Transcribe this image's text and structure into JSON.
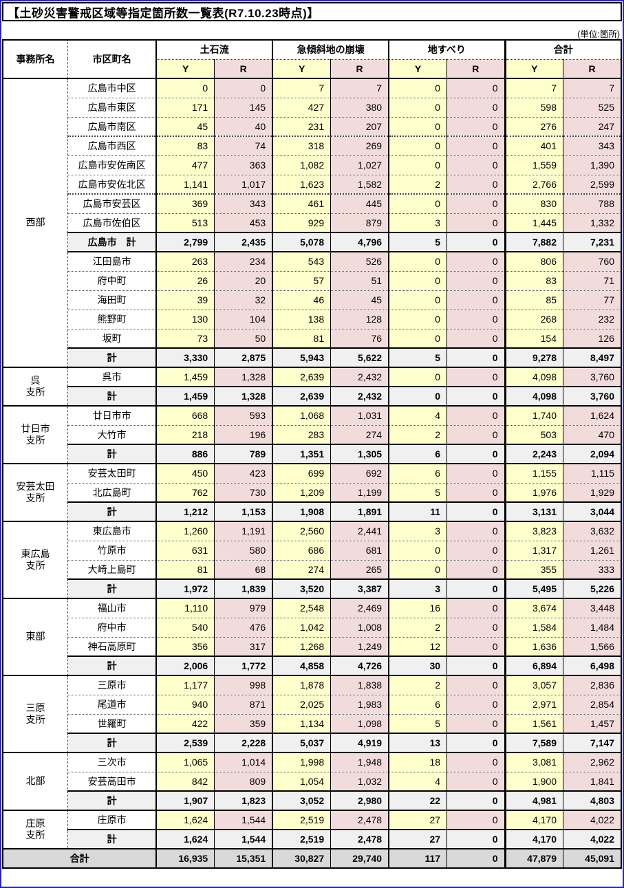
{
  "title": "【土砂災害警戒区域等指定箇所数一覧表(R7.10.23時点)】",
  "unit_note": "(単位:箇所)",
  "colors": {
    "y_bg": "#FFFFCC",
    "r_bg": "#F2DCDB",
    "subtotal_bg": "#F0F0F0",
    "grand_bg": "#D9D9D9",
    "frame_blue": "#2323CC"
  },
  "table": {
    "header": {
      "office": "事務所名",
      "city": "市区町名",
      "categories": [
        "土石流",
        "急傾斜地の崩壊",
        "地すべり",
        "合計"
      ],
      "y": "Y",
      "r": "R"
    },
    "groups": [
      {
        "office": "西部",
        "office_lines": [
          "西部"
        ],
        "rows": [
          {
            "kind": "muni",
            "name": "広島市中区",
            "values": [
              "0",
              "0",
              "7",
              "7",
              "0",
              "0",
              "7",
              "7"
            ]
          },
          {
            "kind": "muni",
            "name": "広島市東区",
            "values": [
              "171",
              "145",
              "427",
              "380",
              "0",
              "0",
              "598",
              "525"
            ]
          },
          {
            "kind": "muni",
            "name": "広島市南区",
            "values": [
              "45",
              "40",
              "231",
              "207",
              "0",
              "0",
              "276",
              "247"
            ]
          },
          {
            "kind": "muni",
            "sep": true,
            "name": "広島市西区",
            "values": [
              "83",
              "74",
              "318",
              "269",
              "0",
              "0",
              "401",
              "343"
            ]
          },
          {
            "kind": "muni",
            "name": "広島市安佐南区",
            "values": [
              "477",
              "363",
              "1,082",
              "1,027",
              "0",
              "0",
              "1,559",
              "1,390"
            ]
          },
          {
            "kind": "muni",
            "name": "広島市安佐北区",
            "values": [
              "1,141",
              "1,017",
              "1,623",
              "1,582",
              "2",
              "0",
              "2,766",
              "2,599"
            ]
          },
          {
            "kind": "muni",
            "sep": true,
            "name": "広島市安芸区",
            "values": [
              "369",
              "343",
              "461",
              "445",
              "0",
              "0",
              "830",
              "788"
            ]
          },
          {
            "kind": "muni",
            "name": "広島市佐伯区",
            "values": [
              "513",
              "453",
              "929",
              "879",
              "3",
              "0",
              "1,445",
              "1,332"
            ]
          },
          {
            "kind": "subtotal",
            "name": "広島市　計",
            "values": [
              "2,799",
              "2,435",
              "5,078",
              "4,796",
              "5",
              "0",
              "7,882",
              "7,231"
            ]
          },
          {
            "kind": "muni",
            "name": "江田島市",
            "values": [
              "263",
              "234",
              "543",
              "526",
              "0",
              "0",
              "806",
              "760"
            ]
          },
          {
            "kind": "muni",
            "name": "府中町",
            "values": [
              "26",
              "20",
              "57",
              "51",
              "0",
              "0",
              "83",
              "71"
            ]
          },
          {
            "kind": "muni",
            "name": "海田町",
            "values": [
              "39",
              "32",
              "46",
              "45",
              "0",
              "0",
              "85",
              "77"
            ]
          },
          {
            "kind": "muni",
            "name": "熊野町",
            "values": [
              "130",
              "104",
              "138",
              "128",
              "0",
              "0",
              "268",
              "232"
            ]
          },
          {
            "kind": "muni",
            "name": "坂町",
            "values": [
              "73",
              "50",
              "81",
              "76",
              "0",
              "0",
              "154",
              "126"
            ]
          },
          {
            "kind": "total",
            "name": "計",
            "values": [
              "3,330",
              "2,875",
              "5,943",
              "5,622",
              "5",
              "0",
              "9,278",
              "8,497"
            ]
          }
        ]
      },
      {
        "office": "呉支所",
        "office_lines": [
          "呉",
          "支所"
        ],
        "rows": [
          {
            "kind": "muni",
            "name": "呉市",
            "values": [
              "1,459",
              "1,328",
              "2,639",
              "2,432",
              "0",
              "0",
              "4,098",
              "3,760"
            ]
          },
          {
            "kind": "total",
            "name": "計",
            "values": [
              "1,459",
              "1,328",
              "2,639",
              "2,432",
              "0",
              "0",
              "4,098",
              "3,760"
            ]
          }
        ]
      },
      {
        "office": "廿日市支所",
        "office_lines": [
          "廿日市",
          "支所"
        ],
        "rows": [
          {
            "kind": "muni",
            "name": "廿日市市",
            "values": [
              "668",
              "593",
              "1,068",
              "1,031",
              "4",
              "0",
              "1,740",
              "1,624"
            ]
          },
          {
            "kind": "muni",
            "name": "大竹市",
            "values": [
              "218",
              "196",
              "283",
              "274",
              "2",
              "0",
              "503",
              "470"
            ]
          },
          {
            "kind": "total",
            "name": "計",
            "values": [
              "886",
              "789",
              "1,351",
              "1,305",
              "6",
              "0",
              "2,243",
              "2,094"
            ]
          }
        ]
      },
      {
        "office": "安芸太田支所",
        "office_lines": [
          "安芸太田",
          "支所"
        ],
        "rows": [
          {
            "kind": "muni",
            "name": "安芸太田町",
            "values": [
              "450",
              "423",
              "699",
              "692",
              "6",
              "0",
              "1,155",
              "1,115"
            ]
          },
          {
            "kind": "muni",
            "name": "北広島町",
            "values": [
              "762",
              "730",
              "1,209",
              "1,199",
              "5",
              "0",
              "1,976",
              "1,929"
            ]
          },
          {
            "kind": "total",
            "name": "計",
            "values": [
              "1,212",
              "1,153",
              "1,908",
              "1,891",
              "11",
              "0",
              "3,131",
              "3,044"
            ]
          }
        ]
      },
      {
        "office": "東広島支所",
        "office_lines": [
          "東広島",
          "支所"
        ],
        "rows": [
          {
            "kind": "muni",
            "name": "東広島市",
            "values": [
              "1,260",
              "1,191",
              "2,560",
              "2,441",
              "3",
              "0",
              "3,823",
              "3,632"
            ]
          },
          {
            "kind": "muni",
            "name": "竹原市",
            "values": [
              "631",
              "580",
              "686",
              "681",
              "0",
              "0",
              "1,317",
              "1,261"
            ]
          },
          {
            "kind": "muni",
            "name": "大崎上島町",
            "values": [
              "81",
              "68",
              "274",
              "265",
              "0",
              "0",
              "355",
              "333"
            ]
          },
          {
            "kind": "total",
            "name": "計",
            "values": [
              "1,972",
              "1,839",
              "3,520",
              "3,387",
              "3",
              "0",
              "5,495",
              "5,226"
            ]
          }
        ]
      },
      {
        "office": "東部",
        "office_lines": [
          "東部"
        ],
        "rows": [
          {
            "kind": "muni",
            "name": "福山市",
            "values": [
              "1,110",
              "979",
              "2,548",
              "2,469",
              "16",
              "0",
              "3,674",
              "3,448"
            ]
          },
          {
            "kind": "muni",
            "name": "府中市",
            "values": [
              "540",
              "476",
              "1,042",
              "1,008",
              "2",
              "0",
              "1,584",
              "1,484"
            ]
          },
          {
            "kind": "muni",
            "name": "神石高原町",
            "values": [
              "356",
              "317",
              "1,268",
              "1,249",
              "12",
              "0",
              "1,636",
              "1,566"
            ]
          },
          {
            "kind": "total",
            "name": "計",
            "values": [
              "2,006",
              "1,772",
              "4,858",
              "4,726",
              "30",
              "0",
              "6,894",
              "6,498"
            ]
          }
        ]
      },
      {
        "office": "三原支所",
        "office_lines": [
          "三原",
          "支所"
        ],
        "rows": [
          {
            "kind": "muni",
            "name": "三原市",
            "values": [
              "1,177",
              "998",
              "1,878",
              "1,838",
              "2",
              "0",
              "3,057",
              "2,836"
            ]
          },
          {
            "kind": "muni",
            "name": "尾道市",
            "values": [
              "940",
              "871",
              "2,025",
              "1,983",
              "6",
              "0",
              "2,971",
              "2,854"
            ]
          },
          {
            "kind": "muni",
            "name": "世羅町",
            "values": [
              "422",
              "359",
              "1,134",
              "1,098",
              "5",
              "0",
              "1,561",
              "1,457"
            ]
          },
          {
            "kind": "total",
            "name": "計",
            "values": [
              "2,539",
              "2,228",
              "5,037",
              "4,919",
              "13",
              "0",
              "7,589",
              "7,147"
            ]
          }
        ]
      },
      {
        "office": "北部",
        "office_lines": [
          "北部"
        ],
        "rows": [
          {
            "kind": "muni",
            "name": "三次市",
            "values": [
              "1,065",
              "1,014",
              "1,998",
              "1,948",
              "18",
              "0",
              "3,081",
              "2,962"
            ]
          },
          {
            "kind": "muni",
            "name": "安芸高田市",
            "values": [
              "842",
              "809",
              "1,054",
              "1,032",
              "4",
              "0",
              "1,900",
              "1,841"
            ]
          },
          {
            "kind": "total",
            "name": "計",
            "values": [
              "1,907",
              "1,823",
              "3,052",
              "2,980",
              "22",
              "0",
              "4,981",
              "4,803"
            ]
          }
        ]
      },
      {
        "office": "庄原支所",
        "office_lines": [
          "庄原",
          "支所"
        ],
        "rows": [
          {
            "kind": "muni",
            "name": "庄原市",
            "values": [
              "1,624",
              "1,544",
              "2,519",
              "2,478",
              "27",
              "0",
              "4,170",
              "4,022"
            ]
          },
          {
            "kind": "total",
            "name": "計",
            "values": [
              "1,624",
              "1,544",
              "2,519",
              "2,478",
              "27",
              "0",
              "4,170",
              "4,022"
            ]
          }
        ]
      }
    ],
    "grand_total": {
      "label": "合計",
      "values": [
        "16,935",
        "15,351",
        "30,827",
        "29,740",
        "117",
        "0",
        "47,879",
        "45,091"
      ]
    }
  }
}
